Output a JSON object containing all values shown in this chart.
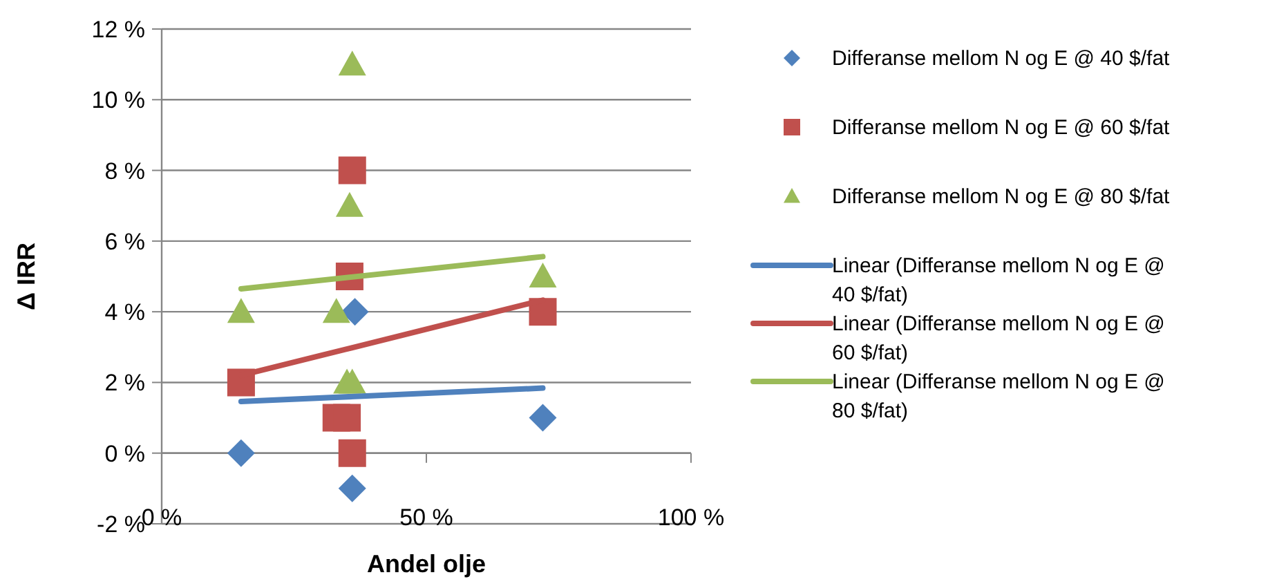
{
  "chart_data": {
    "type": "scatter",
    "xlabel": "Andel olje",
    "ylabel": "Δ IRR",
    "xlim": [
      0,
      100
    ],
    "ylim": [
      -2,
      12
    ],
    "xticks": [
      {
        "value": 0,
        "label": "0 %"
      },
      {
        "value": 50,
        "label": "50 %"
      },
      {
        "value": 100,
        "label": "100 %"
      }
    ],
    "yticks": [
      {
        "value": -2,
        "label": "-2 %"
      },
      {
        "value": 0,
        "label": "0 %"
      },
      {
        "value": 2,
        "label": "2 %"
      },
      {
        "value": 4,
        "label": "4 %"
      },
      {
        "value": 6,
        "label": "6 %"
      },
      {
        "value": 8,
        "label": "8 %"
      },
      {
        "value": 10,
        "label": "10 %"
      },
      {
        "value": 12,
        "label": "12 %"
      }
    ],
    "grid": "y",
    "legend": "right",
    "series": [
      {
        "name": "Differanse mellom N og E @ 40 $/fat",
        "color": "#4f81bd",
        "marker": "diamond",
        "x": [
          15,
          36,
          36.5,
          72
        ],
        "values": [
          0,
          -1,
          4,
          1
        ]
      },
      {
        "name": "Differanse mellom N og E @ 60 $/fat",
        "color": "#c0504d",
        "marker": "square",
        "x": [
          15,
          36,
          35.5,
          33,
          35,
          36,
          72
        ],
        "values": [
          2,
          8,
          5,
          1,
          1,
          0,
          4
        ]
      },
      {
        "name": "Differanse mellom N og E @ 80 $/fat",
        "color": "#9bbb59",
        "marker": "triangle",
        "x": [
          15,
          36,
          35.5,
          33,
          35,
          36,
          72
        ],
        "values": [
          4,
          11,
          7,
          4,
          2,
          2,
          5
        ]
      },
      {
        "name": "Linear (Differanse mellom N og E @ 40 $/fat)",
        "type": "line",
        "color": "#4f81bd",
        "marker": "none",
        "x": [
          15,
          72
        ],
        "values": [
          1.46,
          1.84
        ]
      },
      {
        "name": "Linear (Differanse mellom N og E @ 60 $/fat)",
        "type": "line",
        "color": "#c0504d",
        "marker": "none",
        "x": [
          15,
          72
        ],
        "values": [
          2.2,
          4.33
        ]
      },
      {
        "name": "Linear (Differanse mellom N og E @ 80 $/fat)",
        "type": "line",
        "color": "#9bbb59",
        "marker": "none",
        "x": [
          15,
          72
        ],
        "values": [
          4.65,
          5.56
        ]
      }
    ]
  }
}
